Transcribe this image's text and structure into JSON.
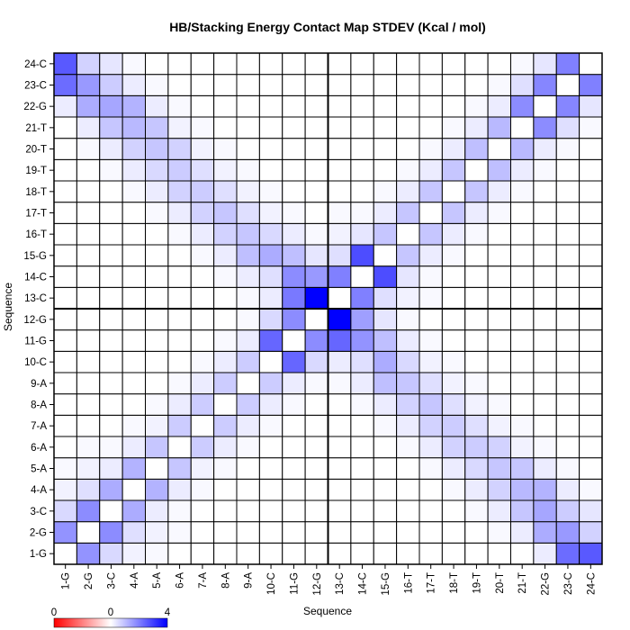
{
  "chart_data": {
    "type": "heatmap",
    "title": "HB/Stacking Energy Contact Map STDEV (Kcal / mol)",
    "xlabel": "Sequence",
    "ylabel": "Sequence",
    "labels": [
      "1-G",
      "2-G",
      "3-C",
      "4-A",
      "5-A",
      "6-A",
      "7-A",
      "8-A",
      "9-A",
      "10-C",
      "11-G",
      "12-G",
      "13-C",
      "14-C",
      "15-G",
      "16-T",
      "17-T",
      "18-T",
      "19-T",
      "20-T",
      "21-T",
      "22-G",
      "23-C",
      "24-C"
    ],
    "color_scale": {
      "min": 0,
      "mid": 0,
      "max": 4,
      "low_color": "#ff0000",
      "mid_color": "#ffffff",
      "high_color": "#0000ff",
      "tick_labels": [
        "0",
        "0",
        "4"
      ]
    },
    "divider_after_index": 12,
    "values": [
      [
        0.0,
        1.7,
        0.6,
        0.2,
        0.1,
        0.0,
        0.0,
        0.0,
        0.0,
        0.0,
        0.0,
        0.0,
        0.0,
        0.0,
        0.0,
        0.0,
        0.0,
        0.0,
        0.0,
        0.0,
        0.0,
        0.3,
        2.3,
        2.6
      ],
      [
        1.7,
        0.0,
        1.8,
        0.5,
        0.2,
        0.1,
        0.0,
        0.0,
        0.0,
        0.0,
        0.0,
        0.0,
        0.0,
        0.0,
        0.0,
        0.0,
        0.0,
        0.0,
        0.0,
        0.1,
        0.3,
        1.3,
        1.6,
        0.7
      ],
      [
        0.6,
        1.8,
        0.0,
        1.3,
        0.3,
        0.1,
        0.0,
        0.0,
        0.0,
        0.0,
        0.0,
        0.0,
        0.0,
        0.0,
        0.0,
        0.0,
        0.0,
        0.0,
        0.1,
        0.3,
        0.9,
        1.4,
        0.8,
        0.4
      ],
      [
        0.2,
        0.5,
        1.3,
        0.0,
        1.2,
        0.3,
        0.1,
        0.0,
        0.0,
        0.0,
        0.0,
        0.0,
        0.0,
        0.0,
        0.0,
        0.0,
        0.0,
        0.1,
        0.3,
        0.7,
        1.1,
        1.2,
        0.3,
        0.1
      ],
      [
        0.1,
        0.2,
        0.3,
        1.2,
        0.0,
        0.9,
        0.2,
        0.1,
        0.0,
        0.0,
        0.0,
        0.0,
        0.0,
        0.0,
        0.0,
        0.0,
        0.1,
        0.3,
        0.6,
        0.9,
        0.9,
        0.3,
        0.1,
        0.0
      ],
      [
        0.0,
        0.1,
        0.1,
        0.3,
        0.9,
        0.0,
        0.8,
        0.3,
        0.1,
        0.0,
        0.0,
        0.0,
        0.0,
        0.0,
        0.0,
        0.1,
        0.3,
        0.7,
        0.8,
        0.7,
        0.2,
        0.1,
        0.0,
        0.0
      ],
      [
        0.0,
        0.0,
        0.0,
        0.1,
        0.2,
        0.8,
        0.0,
        0.8,
        0.3,
        0.1,
        0.0,
        0.0,
        0.0,
        0.0,
        0.1,
        0.3,
        0.7,
        0.8,
        0.5,
        0.2,
        0.1,
        0.0,
        0.0,
        0.0
      ],
      [
        0.0,
        0.0,
        0.0,
        0.0,
        0.1,
        0.3,
        0.8,
        0.0,
        0.8,
        0.3,
        0.1,
        0.0,
        0.0,
        0.1,
        0.3,
        0.7,
        0.9,
        0.5,
        0.2,
        0.1,
        0.0,
        0.0,
        0.0,
        0.0
      ],
      [
        0.0,
        0.0,
        0.0,
        0.0,
        0.0,
        0.1,
        0.3,
        0.8,
        0.0,
        0.8,
        0.3,
        0.1,
        0.1,
        0.3,
        1.0,
        0.9,
        0.5,
        0.2,
        0.1,
        0.0,
        0.0,
        0.0,
        0.0,
        0.0
      ],
      [
        0.0,
        0.0,
        0.0,
        0.0,
        0.0,
        0.0,
        0.1,
        0.3,
        0.8,
        0.0,
        2.4,
        0.6,
        0.3,
        0.5,
        1.3,
        0.6,
        0.2,
        0.1,
        0.0,
        0.0,
        0.0,
        0.0,
        0.0,
        0.0
      ],
      [
        0.0,
        0.0,
        0.0,
        0.0,
        0.0,
        0.0,
        0.0,
        0.1,
        0.3,
        2.4,
        0.0,
        1.8,
        2.4,
        1.7,
        1.0,
        0.3,
        0.1,
        0.0,
        0.0,
        0.0,
        0.0,
        0.0,
        0.0,
        0.0
      ],
      [
        0.0,
        0.0,
        0.0,
        0.0,
        0.0,
        0.0,
        0.0,
        0.0,
        0.1,
        0.6,
        1.8,
        0.0,
        4.0,
        1.5,
        0.4,
        0.1,
        0.0,
        0.0,
        0.0,
        0.0,
        0.0,
        0.0,
        0.0,
        0.0
      ],
      [
        0.0,
        0.0,
        0.0,
        0.0,
        0.0,
        0.0,
        0.0,
        0.0,
        0.1,
        0.3,
        2.1,
        4.0,
        0.0,
        2.0,
        0.5,
        0.2,
        0.1,
        0.0,
        0.0,
        0.0,
        0.0,
        0.0,
        0.0,
        0.0
      ],
      [
        0.0,
        0.0,
        0.0,
        0.0,
        0.0,
        0.0,
        0.0,
        0.1,
        0.3,
        0.5,
        1.8,
        1.6,
        2.0,
        0.0,
        2.8,
        0.4,
        0.1,
        0.0,
        0.0,
        0.0,
        0.0,
        0.0,
        0.0,
        0.0
      ],
      [
        0.0,
        0.0,
        0.0,
        0.0,
        0.0,
        0.0,
        0.1,
        0.3,
        1.0,
        1.3,
        1.0,
        0.4,
        0.5,
        2.8,
        0.0,
        0.9,
        0.3,
        0.1,
        0.0,
        0.0,
        0.0,
        0.0,
        0.0,
        0.0
      ],
      [
        0.0,
        0.0,
        0.0,
        0.0,
        0.0,
        0.1,
        0.3,
        0.7,
        0.9,
        0.6,
        0.3,
        0.1,
        0.2,
        0.4,
        0.9,
        0.0,
        0.9,
        0.3,
        0.1,
        0.0,
        0.0,
        0.0,
        0.0,
        0.0
      ],
      [
        0.0,
        0.0,
        0.0,
        0.0,
        0.1,
        0.3,
        0.7,
        0.9,
        0.5,
        0.2,
        0.1,
        0.0,
        0.1,
        0.1,
        0.3,
        0.9,
        0.0,
        0.9,
        0.3,
        0.1,
        0.0,
        0.0,
        0.0,
        0.0
      ],
      [
        0.0,
        0.0,
        0.0,
        0.1,
        0.3,
        0.7,
        0.8,
        0.5,
        0.2,
        0.1,
        0.0,
        0.0,
        0.0,
        0.0,
        0.1,
        0.3,
        0.9,
        0.0,
        0.9,
        0.3,
        0.1,
        0.0,
        0.0,
        0.0
      ],
      [
        0.0,
        0.0,
        0.1,
        0.3,
        0.6,
        0.8,
        0.5,
        0.2,
        0.1,
        0.0,
        0.0,
        0.0,
        0.0,
        0.0,
        0.0,
        0.1,
        0.3,
        0.9,
        0.0,
        1.0,
        0.3,
        0.1,
        0.0,
        0.0
      ],
      [
        0.0,
        0.1,
        0.3,
        0.7,
        0.9,
        0.7,
        0.2,
        0.1,
        0.0,
        0.0,
        0.0,
        0.0,
        0.0,
        0.0,
        0.0,
        0.0,
        0.1,
        0.3,
        1.0,
        0.0,
        1.1,
        0.3,
        0.1,
        0.0
      ],
      [
        0.0,
        0.3,
        0.9,
        1.1,
        0.9,
        0.2,
        0.1,
        0.0,
        0.0,
        0.0,
        0.0,
        0.0,
        0.0,
        0.0,
        0.0,
        0.0,
        0.0,
        0.1,
        0.3,
        1.1,
        0.0,
        1.8,
        0.5,
        0.1
      ],
      [
        0.3,
        1.3,
        1.4,
        1.2,
        0.3,
        0.1,
        0.0,
        0.0,
        0.0,
        0.0,
        0.0,
        0.0,
        0.0,
        0.0,
        0.0,
        0.0,
        0.0,
        0.0,
        0.1,
        0.3,
        1.8,
        0.0,
        1.9,
        0.4
      ],
      [
        2.3,
        1.6,
        0.8,
        0.3,
        0.1,
        0.0,
        0.0,
        0.0,
        0.0,
        0.0,
        0.0,
        0.0,
        0.0,
        0.0,
        0.0,
        0.0,
        0.0,
        0.0,
        0.0,
        0.1,
        0.5,
        1.9,
        0.0,
        2.0
      ],
      [
        2.6,
        0.7,
        0.4,
        0.1,
        0.0,
        0.0,
        0.0,
        0.0,
        0.0,
        0.0,
        0.0,
        0.0,
        0.0,
        0.0,
        0.0,
        0.0,
        0.0,
        0.0,
        0.0,
        0.0,
        0.1,
        0.4,
        2.0,
        0.0
      ]
    ]
  }
}
